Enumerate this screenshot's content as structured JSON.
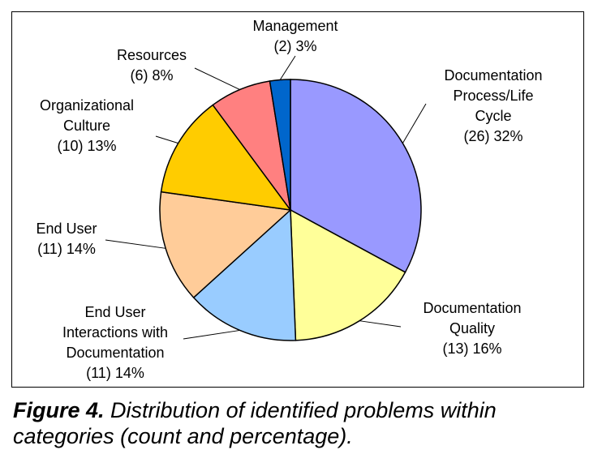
{
  "caption": {
    "figure_label": "Figure 4.",
    "text": " Distribution of identified problems within categories (count and percentage)."
  },
  "chart_data": {
    "type": "pie",
    "title": "",
    "slices": [
      {
        "label": [
          "Documentation",
          "Process/Life",
          "Cycle",
          "(26) 32%"
        ],
        "value": 26,
        "percent": 32,
        "color": "#9999ff"
      },
      {
        "label": [
          "Documentation",
          "Quality",
          "(13) 16%"
        ],
        "value": 13,
        "percent": 16,
        "color": "#ffff99"
      },
      {
        "label": [
          "End User",
          "Interactions with",
          "Documentation",
          "(11) 14%"
        ],
        "value": 11,
        "percent": 14,
        "color": "#99ccff"
      },
      {
        "label": [
          "End User",
          "(11) 14%"
        ],
        "value": 11,
        "percent": 14,
        "color": "#ffcc99"
      },
      {
        "label": [
          "Organizational",
          "Culture",
          "(10) 13%"
        ],
        "value": 10,
        "percent": 13,
        "color": "#ffcc00"
      },
      {
        "label": [
          "Resources",
          "(6) 8%"
        ],
        "value": 6,
        "percent": 8,
        "color": "#ff8080"
      },
      {
        "label": [
          "Management",
          "(2) 3%"
        ],
        "value": 2,
        "percent": 3,
        "color": "#0066cc"
      }
    ],
    "legend": "none"
  }
}
